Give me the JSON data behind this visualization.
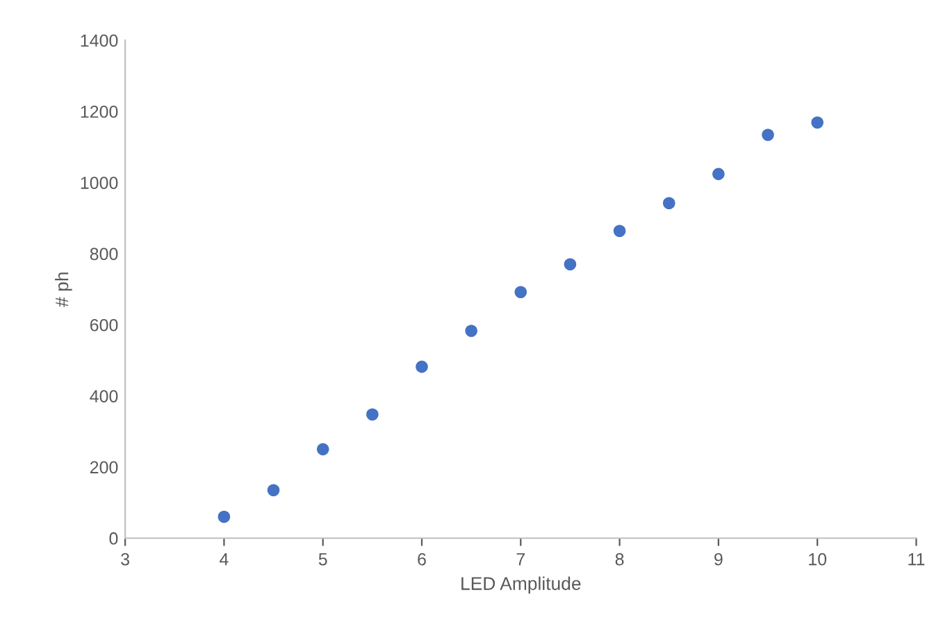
{
  "chart_data": {
    "type": "scatter",
    "xlabel": "LED Amplitude",
    "ylabel": "# ph",
    "x": [
      4,
      4.5,
      5,
      5.5,
      6,
      6.5,
      7,
      7.5,
      8,
      8.5,
      9,
      9.5,
      10
    ],
    "series": [
      {
        "color": "#4472c4",
        "values": [
          60,
          135,
          250,
          348,
          482,
          583,
          692,
          770,
          864,
          942,
          1024,
          1134,
          1169
        ]
      }
    ],
    "xlim": [
      3,
      11
    ],
    "xticks": [
      3,
      4,
      5,
      6,
      7,
      8,
      9,
      10,
      11
    ],
    "ylim": [
      0,
      1400
    ],
    "yticks": [
      0,
      200,
      400,
      600,
      800,
      1000,
      1200,
      1400
    ],
    "grid": false,
    "marker": "circle"
  }
}
